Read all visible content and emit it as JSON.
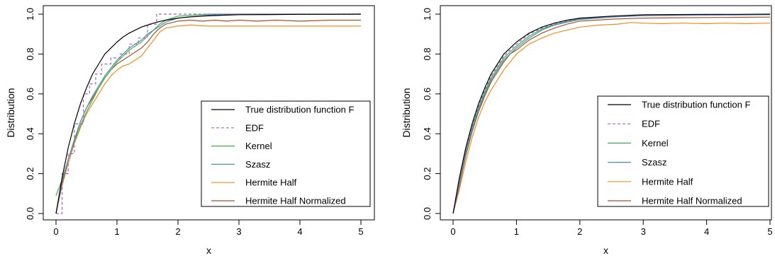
{
  "chart_data": [
    {
      "type": "line",
      "xlabel": "x",
      "ylabel": "Distribution",
      "xlim": [
        0,
        5
      ],
      "ylim": [
        0,
        1
      ],
      "xticks": [
        "0",
        "1",
        "2",
        "3",
        "4",
        "5"
      ],
      "yticks": [
        "0.0",
        "0.2",
        "0.4",
        "0.6",
        "0.8",
        "1.0"
      ],
      "grid": false,
      "legend_position": "bottom-right",
      "series": [
        {
          "name": "True distribution function F",
          "color": "#000000",
          "dash": "solid",
          "x": [
            0,
            0.1,
            0.2,
            0.3,
            0.4,
            0.5,
            0.6,
            0.7,
            0.8,
            0.9,
            1.0,
            1.1,
            1.2,
            1.3,
            1.4,
            1.5,
            1.6,
            1.7,
            1.8,
            1.9,
            2.0,
            2.2,
            2.4,
            2.6,
            2.8,
            3.0,
            3.5,
            4.0,
            4.5,
            5.0
          ],
          "y": [
            0,
            0.18,
            0.33,
            0.45,
            0.55,
            0.63,
            0.7,
            0.75,
            0.8,
            0.83,
            0.86,
            0.885,
            0.905,
            0.92,
            0.935,
            0.945,
            0.955,
            0.963,
            0.97,
            0.975,
            0.98,
            0.986,
            0.99,
            0.993,
            0.995,
            0.997,
            0.998,
            0.999,
            0.999,
            1.0
          ]
        },
        {
          "name": "EDF",
          "color": "#b05fc0",
          "dash": "dashed",
          "x": [
            0,
            0.1,
            0.1,
            0.2,
            0.2,
            0.3,
            0.3,
            0.45,
            0.45,
            0.55,
            0.55,
            0.65,
            0.65,
            0.75,
            0.75,
            0.9,
            0.9,
            1.05,
            1.05,
            1.2,
            1.2,
            1.35,
            1.35,
            1.5,
            1.5,
            1.65,
            1.65,
            5.0
          ],
          "y": [
            0,
            0,
            0.2,
            0.2,
            0.3,
            0.3,
            0.45,
            0.45,
            0.6,
            0.6,
            0.65,
            0.65,
            0.7,
            0.7,
            0.75,
            0.75,
            0.78,
            0.78,
            0.8,
            0.8,
            0.85,
            0.85,
            0.88,
            0.88,
            0.95,
            0.95,
            1.0,
            1.0
          ]
        },
        {
          "name": "Kernel",
          "color": "#3cb34a",
          "dash": "solid",
          "x": [
            0,
            0.1,
            0.2,
            0.3,
            0.4,
            0.5,
            0.6,
            0.7,
            0.8,
            0.9,
            1.0,
            1.1,
            1.2,
            1.3,
            1.4,
            1.5,
            1.6,
            1.7,
            1.8,
            2.0,
            2.5,
            3.0,
            4.0,
            5.0
          ],
          "y": [
            0.09,
            0.17,
            0.27,
            0.36,
            0.44,
            0.51,
            0.57,
            0.63,
            0.68,
            0.72,
            0.76,
            0.79,
            0.82,
            0.84,
            0.86,
            0.89,
            0.92,
            0.95,
            0.97,
            0.99,
            1.0,
            1.0,
            1.0,
            1.0
          ]
        },
        {
          "name": "Szasz",
          "color": "#4a8fb5",
          "dash": "solid",
          "x": [
            0,
            0.1,
            0.2,
            0.3,
            0.4,
            0.5,
            0.6,
            0.7,
            0.8,
            0.9,
            1.0,
            1.1,
            1.2,
            1.3,
            1.4,
            1.5,
            1.6,
            1.7,
            1.8,
            2.0,
            2.5,
            3.0,
            4.0,
            5.0
          ],
          "y": [
            0,
            0.16,
            0.27,
            0.37,
            0.46,
            0.53,
            0.59,
            0.64,
            0.69,
            0.73,
            0.77,
            0.8,
            0.83,
            0.85,
            0.87,
            0.9,
            0.92,
            0.94,
            0.96,
            0.98,
            0.995,
            1.0,
            1.0,
            1.0
          ]
        },
        {
          "name": "Hermite Half",
          "color": "#f28c1e",
          "dash": "solid",
          "x": [
            0,
            0.1,
            0.2,
            0.3,
            0.4,
            0.5,
            0.6,
            0.7,
            0.8,
            0.9,
            1.0,
            1.1,
            1.2,
            1.3,
            1.4,
            1.5,
            1.6,
            1.7,
            1.8,
            2.0,
            2.2,
            2.5,
            3.0,
            3.5,
            4.0,
            4.5,
            5.0
          ],
          "y": [
            0,
            0.14,
            0.25,
            0.35,
            0.43,
            0.5,
            0.55,
            0.6,
            0.65,
            0.69,
            0.72,
            0.74,
            0.75,
            0.77,
            0.79,
            0.83,
            0.87,
            0.91,
            0.93,
            0.94,
            0.945,
            0.94,
            0.94,
            0.94,
            0.94,
            0.94,
            0.94
          ]
        },
        {
          "name": "Hermite Half Normalized",
          "color": "#a0522d",
          "dash": "solid",
          "x": [
            0,
            0.1,
            0.2,
            0.3,
            0.4,
            0.5,
            0.6,
            0.7,
            0.8,
            0.9,
            1.0,
            1.1,
            1.2,
            1.3,
            1.4,
            1.5,
            1.6,
            1.7,
            1.8,
            2.0,
            2.2,
            2.4,
            2.6,
            2.8,
            3.0,
            3.3,
            3.6,
            4.0,
            4.5,
            5.0
          ],
          "y": [
            0,
            0.15,
            0.27,
            0.37,
            0.46,
            0.53,
            0.58,
            0.63,
            0.68,
            0.72,
            0.75,
            0.77,
            0.79,
            0.81,
            0.83,
            0.86,
            0.9,
            0.93,
            0.95,
            0.965,
            0.97,
            0.965,
            0.97,
            0.965,
            0.97,
            0.965,
            0.97,
            0.965,
            0.97,
            0.97
          ]
        }
      ]
    },
    {
      "type": "line",
      "xlabel": "x",
      "ylabel": "Distribution",
      "xlim": [
        0,
        5
      ],
      "ylim": [
        0,
        1
      ],
      "xticks": [
        "0",
        "1",
        "2",
        "3",
        "4",
        "5"
      ],
      "yticks": [
        "0.0",
        "0.2",
        "0.4",
        "0.6",
        "0.8",
        "1.0"
      ],
      "grid": false,
      "legend_position": "bottom-right",
      "series": [
        {
          "name": "True distribution function F",
          "color": "#000000",
          "dash": "solid",
          "x": [
            0,
            0.1,
            0.2,
            0.3,
            0.4,
            0.5,
            0.6,
            0.7,
            0.8,
            0.9,
            1.0,
            1.2,
            1.4,
            1.6,
            1.8,
            2.0,
            2.5,
            3.0,
            3.5,
            4.0,
            4.5,
            5.0
          ],
          "y": [
            0,
            0.18,
            0.33,
            0.45,
            0.55,
            0.63,
            0.7,
            0.75,
            0.8,
            0.83,
            0.86,
            0.905,
            0.935,
            0.955,
            0.97,
            0.98,
            0.99,
            0.997,
            0.998,
            0.999,
            0.999,
            1.0
          ]
        },
        {
          "name": "EDF",
          "color": "#b05fc0",
          "dash": "dashed",
          "x": [
            0,
            0.1,
            0.2,
            0.3,
            0.4,
            0.5,
            0.6,
            0.7,
            0.8,
            0.9,
            1.0,
            1.2,
            1.4,
            1.6,
            1.8,
            2.0,
            2.5,
            3.0,
            3.5,
            4.0,
            4.5,
            5.0
          ],
          "y": [
            0,
            0.17,
            0.32,
            0.44,
            0.54,
            0.62,
            0.69,
            0.74,
            0.79,
            0.82,
            0.85,
            0.9,
            0.93,
            0.95,
            0.965,
            0.978,
            0.988,
            0.994,
            0.996,
            0.997,
            0.998,
            1.0
          ]
        },
        {
          "name": "Kernel",
          "color": "#3cb34a",
          "dash": "solid",
          "x": [
            0,
            0.1,
            0.2,
            0.3,
            0.4,
            0.5,
            0.6,
            0.7,
            0.8,
            0.9,
            1.0,
            1.2,
            1.4,
            1.6,
            1.8,
            2.0,
            2.5,
            3.0,
            3.5,
            4.0,
            4.5,
            5.0
          ],
          "y": [
            0,
            0.16,
            0.31,
            0.43,
            0.53,
            0.61,
            0.68,
            0.73,
            0.78,
            0.81,
            0.84,
            0.89,
            0.925,
            0.948,
            0.963,
            0.976,
            0.987,
            0.993,
            0.995,
            0.996,
            0.997,
            0.998
          ]
        },
        {
          "name": "Szasz",
          "color": "#4a8fb5",
          "dash": "solid",
          "x": [
            0,
            0.1,
            0.2,
            0.3,
            0.4,
            0.5,
            0.6,
            0.7,
            0.8,
            0.9,
            1.0,
            1.2,
            1.4,
            1.6,
            1.8,
            2.0,
            2.5,
            3.0,
            3.5,
            4.0,
            4.5,
            5.0
          ],
          "y": [
            0,
            0.15,
            0.3,
            0.42,
            0.52,
            0.6,
            0.67,
            0.72,
            0.77,
            0.8,
            0.83,
            0.88,
            0.92,
            0.945,
            0.96,
            0.973,
            0.985,
            0.992,
            0.994,
            0.995,
            0.996,
            0.997
          ]
        },
        {
          "name": "Hermite Half",
          "color": "#f28c1e",
          "dash": "solid",
          "x": [
            0,
            0.1,
            0.2,
            0.3,
            0.4,
            0.5,
            0.6,
            0.7,
            0.8,
            0.9,
            1.0,
            1.2,
            1.4,
            1.6,
            1.8,
            2.0,
            2.3,
            2.6,
            2.8,
            3.0,
            3.3,
            3.6,
            4.0,
            4.3,
            4.6,
            5.0
          ],
          "y": [
            0,
            0.12,
            0.26,
            0.38,
            0.48,
            0.56,
            0.62,
            0.67,
            0.72,
            0.76,
            0.8,
            0.85,
            0.88,
            0.905,
            0.92,
            0.935,
            0.945,
            0.95,
            0.958,
            0.955,
            0.952,
            0.955,
            0.952,
            0.955,
            0.952,
            0.955
          ]
        },
        {
          "name": "Hermite Half Normalized",
          "color": "#a0522d",
          "dash": "solid",
          "x": [
            0,
            0.1,
            0.2,
            0.3,
            0.4,
            0.5,
            0.6,
            0.7,
            0.8,
            0.9,
            1.0,
            1.2,
            1.4,
            1.6,
            1.8,
            2.0,
            2.5,
            3.0,
            3.5,
            4.0,
            4.5,
            5.0
          ],
          "y": [
            0,
            0.14,
            0.29,
            0.41,
            0.51,
            0.59,
            0.66,
            0.71,
            0.76,
            0.8,
            0.82,
            0.87,
            0.905,
            0.93,
            0.95,
            0.965,
            0.975,
            0.98,
            0.982,
            0.983,
            0.984,
            0.985
          ]
        }
      ]
    }
  ]
}
